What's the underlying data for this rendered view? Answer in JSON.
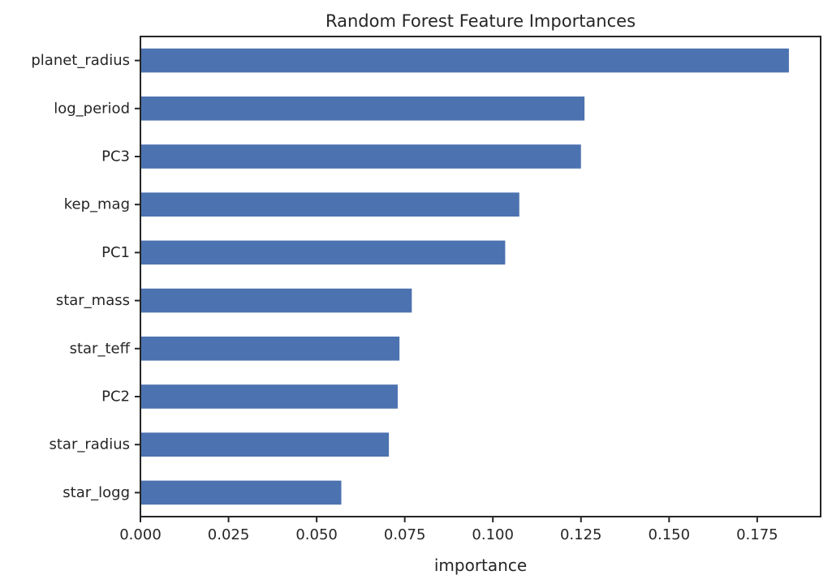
{
  "chart_data": {
    "type": "bar",
    "orientation": "horizontal",
    "title": "Random Forest Feature Importances",
    "xlabel": "importance",
    "ylabel": "",
    "xlim": [
      0,
      0.193
    ],
    "x_ticks": [
      "0.000",
      "0.025",
      "0.050",
      "0.075",
      "0.100",
      "0.125",
      "0.150",
      "0.175"
    ],
    "x_tick_values": [
      0,
      0.025,
      0.05,
      0.075,
      0.1,
      0.125,
      0.15,
      0.175
    ],
    "categories": [
      "planet_radius",
      "log_period",
      "PC3",
      "kep_mag",
      "PC1",
      "star_mass",
      "star_teff",
      "PC2",
      "star_radius",
      "star_logg"
    ],
    "values": [
      0.184,
      0.126,
      0.125,
      0.1075,
      0.1035,
      0.077,
      0.0735,
      0.073,
      0.0705,
      0.057
    ],
    "bar_color": "#4c72b0",
    "grid": false,
    "legend": "none"
  }
}
